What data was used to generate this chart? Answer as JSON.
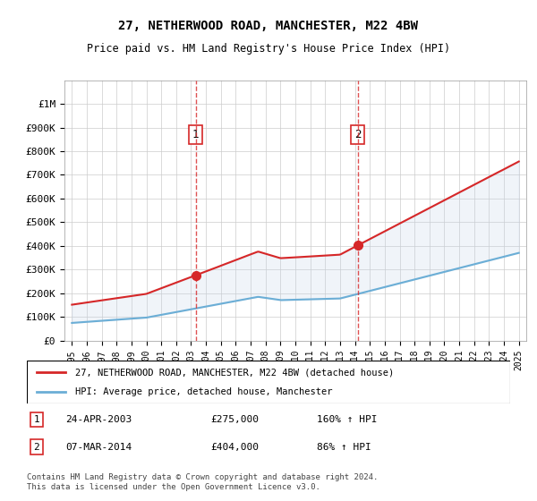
{
  "title_line1": "27, NETHERWOOD ROAD, MANCHESTER, M22 4BW",
  "title_line2": "Price paid vs. HM Land Registry's House Price Index (HPI)",
  "legend_line1": "27, NETHERWOOD ROAD, MANCHESTER, M22 4BW (detached house)",
  "legend_line2": "HPI: Average price, detached house, Manchester",
  "footnote": "Contains HM Land Registry data © Crown copyright and database right 2024.\nThis data is licensed under the Open Government Licence v3.0.",
  "annotation1_label": "1",
  "annotation1_date": "24-APR-2003",
  "annotation1_price": "£275,000",
  "annotation1_hpi": "160% ↑ HPI",
  "annotation2_label": "2",
  "annotation2_date": "07-MAR-2014",
  "annotation2_price": "£404,000",
  "annotation2_hpi": "86% ↑ HPI",
  "sale1_year": 2003.31,
  "sale1_value": 275000,
  "sale2_year": 2014.18,
  "sale2_value": 404000,
  "hpi_color": "#6baed6",
  "house_color": "#d62728",
  "sale_dot_color": "#d62728",
  "vline_color": "#d62728",
  "annotation_box_color": "#d62728",
  "bg_color": "#dce9f5",
  "plot_bg": "#ffffff",
  "grid_color": "#cccccc",
  "ymin": 0,
  "ymax": 1100000,
  "xmin": 1994.5,
  "xmax": 2025.5,
  "ytick_labels": [
    "£0",
    "£100K",
    "£200K",
    "£300K",
    "£400K",
    "£500K",
    "£600K",
    "£700K",
    "£800K",
    "£900K",
    "£1M"
  ],
  "ytick_values": [
    0,
    100000,
    200000,
    300000,
    400000,
    500000,
    600000,
    700000,
    800000,
    900000,
    1000000
  ],
  "xtick_years": [
    1995,
    1996,
    1997,
    1998,
    1999,
    2000,
    2001,
    2002,
    2003,
    2004,
    2005,
    2006,
    2007,
    2008,
    2009,
    2010,
    2011,
    2012,
    2013,
    2014,
    2015,
    2016,
    2017,
    2018,
    2019,
    2020,
    2021,
    2022,
    2023,
    2024,
    2025
  ]
}
